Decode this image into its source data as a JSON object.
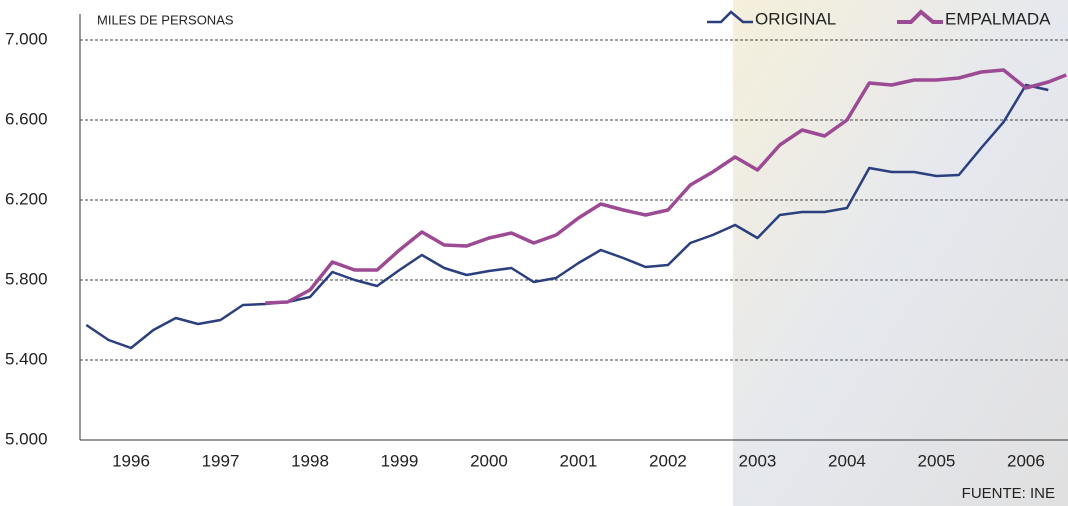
{
  "chart_data": {
    "type": "line",
    "y_label": "MILES DE PERSONAS",
    "source": "FUENTE: INE",
    "x": [
      1995.5,
      1995.75,
      1996,
      1996.25,
      1996.5,
      1996.75,
      1997,
      1997.25,
      1997.5,
      1997.75,
      1998,
      1998.25,
      1998.5,
      1998.75,
      1999,
      1999.25,
      1999.5,
      1999.75,
      2000,
      2000.25,
      2000.5,
      2000.75,
      2001,
      2001.25,
      2001.5,
      2001.75,
      2002,
      2002.25,
      2002.5,
      2002.75,
      2003,
      2003.25,
      2003.5,
      2003.75,
      2004,
      2004.25,
      2004.5,
      2004.75,
      2005,
      2005.25,
      2005.5,
      2005.75,
      2006,
      2006.25,
      2006.45
    ],
    "series": [
      {
        "name": "ORIGINAL",
        "color": "#2b3f7e",
        "values": [
          5575,
          5500,
          5460,
          5550,
          5610,
          5580,
          5600,
          5675,
          5680,
          5690,
          5715,
          5840,
          5800,
          5770,
          5850,
          5925,
          5860,
          5825,
          5845,
          5860,
          5790,
          5810,
          5885,
          5950,
          5910,
          5865,
          5875,
          5985,
          6025,
          6075,
          6010,
          6125,
          6140,
          6140,
          6160,
          6360,
          6340,
          6340,
          6320,
          6325,
          6460,
          6590,
          6775,
          6750,
          null
        ]
      },
      {
        "name": "EMPALMADA",
        "color": "#9b4a93",
        "values": [
          null,
          null,
          null,
          null,
          null,
          null,
          null,
          null,
          5685,
          5690,
          5750,
          5890,
          5850,
          5850,
          5950,
          6040,
          5975,
          5970,
          6010,
          6035,
          5985,
          6025,
          6110,
          6180,
          6150,
          6125,
          6150,
          6275,
          6340,
          6415,
          6350,
          6475,
          6550,
          6520,
          6600,
          6785,
          6775,
          6800,
          6800,
          6810,
          6840,
          6850,
          6760,
          6790,
          6825
        ]
      }
    ],
    "xlim": [
      1995.43,
      2006.47
    ],
    "xticks": [
      1996,
      1997,
      1998,
      1999,
      2000,
      2001,
      2002,
      2003,
      2004,
      2005,
      2006
    ],
    "ylim": [
      5000,
      7000
    ],
    "yticks": [
      {
        "value": 5000,
        "label": "5.000"
      },
      {
        "value": 5400,
        "label": "5.400"
      },
      {
        "value": 5800,
        "label": "5.800"
      },
      {
        "value": 6200,
        "label": "6.200"
      },
      {
        "value": 6600,
        "label": "6.600"
      },
      {
        "value": 7000,
        "label": "7.000"
      }
    ],
    "grid": true,
    "legend": "top-right"
  }
}
